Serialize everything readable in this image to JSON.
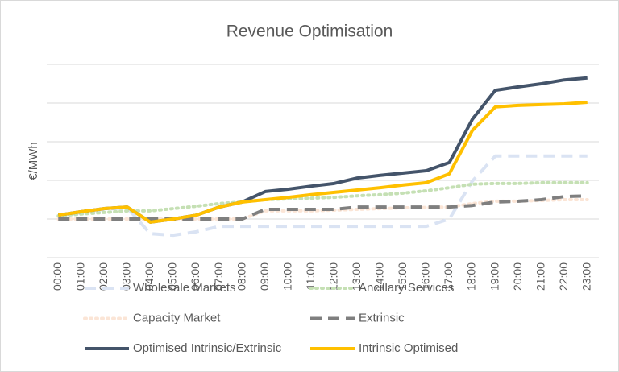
{
  "chart_data": {
    "type": "line",
    "title": "Revenue Optimisation",
    "y_label": "€/MWh",
    "categories": [
      "00:00",
      "01:00",
      "02:00",
      "03:00",
      "04:00",
      "05:00",
      "06:00",
      "07:00",
      "08:00",
      "09:00",
      "10:00",
      "11:00",
      "12:00",
      "13:00",
      "14:00",
      "15:00",
      "16:00",
      "17:00",
      "18:00",
      "19:00",
      "20:00",
      "21:00",
      "22:00",
      "23:00"
    ],
    "ylim": [
      -1,
      4
    ],
    "yticks": [
      -1,
      0,
      1,
      2,
      3,
      4
    ],
    "grid": true,
    "series": [
      {
        "name": "Wholesale Markets",
        "color": "#dae3f3",
        "dash": "dashed",
        "values": [
          0.08,
          0.17,
          0.25,
          0.29,
          -0.38,
          -0.42,
          -0.33,
          -0.19,
          -0.19,
          -0.19,
          -0.19,
          -0.19,
          -0.19,
          -0.19,
          -0.19,
          -0.19,
          -0.19,
          0,
          0.98,
          1.63,
          1.63,
          1.63,
          1.63,
          1.63
        ]
      },
      {
        "name": "Ancillary Services",
        "color": "#c5e0b4",
        "dash": "dotted",
        "values": [
          0.08,
          0.13,
          0.17,
          0.21,
          0.21,
          0.27,
          0.33,
          0.4,
          0.44,
          0.5,
          0.52,
          0.54,
          0.56,
          0.6,
          0.63,
          0.67,
          0.73,
          0.81,
          0.9,
          0.92,
          0.92,
          0.94,
          0.94,
          0.94
        ]
      },
      {
        "name": "Capacity Market",
        "color": "#fbe5d6",
        "dash": "dotted",
        "values": [
          0,
          0,
          0,
          0,
          0,
          0,
          0,
          0,
          0,
          0.21,
          0.21,
          0.21,
          0.23,
          0.25,
          0.27,
          0.29,
          0.3,
          0.31,
          0.4,
          0.46,
          0.46,
          0.48,
          0.5,
          0.5
        ]
      },
      {
        "name": "Extrinsic",
        "color": "#7f7f7f",
        "dash": "dashed",
        "values": [
          0,
          0,
          0,
          0,
          0,
          0,
          0,
          0,
          0,
          0.25,
          0.25,
          0.25,
          0.25,
          0.31,
          0.31,
          0.31,
          0.31,
          0.31,
          0.35,
          0.44,
          0.46,
          0.5,
          0.58,
          0.6
        ]
      },
      {
        "name": "Optimised Intrinsic/Extrinsic",
        "color": "#44546a",
        "dash": "solid",
        "values": [
          0.1,
          0.19,
          0.27,
          0.31,
          -0.08,
          0,
          0.1,
          0.31,
          0.44,
          0.71,
          0.77,
          0.85,
          0.92,
          1.06,
          1.13,
          1.19,
          1.25,
          1.46,
          2.58,
          3.33,
          3.42,
          3.5,
          3.6,
          3.65
        ]
      },
      {
        "name": "Intrinsic Optimised",
        "color": "#ffc000",
        "dash": "solid",
        "values": [
          0.1,
          0.19,
          0.27,
          0.31,
          -0.08,
          0,
          0.1,
          0.31,
          0.44,
          0.5,
          0.56,
          0.63,
          0.69,
          0.75,
          0.81,
          0.88,
          0.94,
          1.17,
          2.29,
          2.9,
          2.94,
          2.96,
          2.98,
          3.02
        ]
      }
    ]
  }
}
